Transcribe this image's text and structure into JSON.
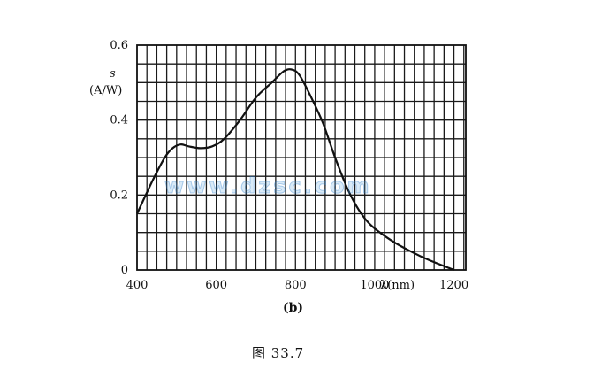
{
  "chart_data": {
    "type": "line",
    "title": "",
    "xlabel": "λ(nm)",
    "ylabel_symbol": "s",
    "ylabel_unit": "(A/W)",
    "xlim": [
      400,
      1230
    ],
    "ylim": [
      0,
      0.6
    ],
    "grid": true,
    "x_ticks": [
      {
        "value": 400,
        "label": "400"
      },
      {
        "value": 600,
        "label": "600"
      },
      {
        "value": 800,
        "label": "800"
      },
      {
        "value": 1000,
        "label": "1000"
      },
      {
        "value": 1200,
        "label": "1200"
      }
    ],
    "y_ticks": [
      {
        "value": 0,
        "label": "0"
      },
      {
        "value": 0.2,
        "label": "0.2"
      },
      {
        "value": 0.4,
        "label": "0.4"
      },
      {
        "value": 0.6,
        "label": "0.6"
      }
    ],
    "series": [
      {
        "color": "#111111",
        "points": [
          [
            400,
            0.15
          ],
          [
            440,
            0.24
          ],
          [
            470,
            0.3
          ],
          [
            490,
            0.325
          ],
          [
            510,
            0.335
          ],
          [
            530,
            0.33
          ],
          [
            560,
            0.325
          ],
          [
            590,
            0.33
          ],
          [
            620,
            0.35
          ],
          [
            660,
            0.4
          ],
          [
            700,
            0.46
          ],
          [
            740,
            0.5
          ],
          [
            770,
            0.53
          ],
          [
            790,
            0.535
          ],
          [
            810,
            0.52
          ],
          [
            840,
            0.46
          ],
          [
            870,
            0.39
          ],
          [
            900,
            0.3
          ],
          [
            930,
            0.22
          ],
          [
            960,
            0.16
          ],
          [
            990,
            0.12
          ],
          [
            1040,
            0.08
          ],
          [
            1090,
            0.05
          ],
          [
            1140,
            0.025
          ],
          [
            1200,
            0.0
          ]
        ]
      }
    ]
  },
  "watermark": "www.dzsc.com",
  "subfigure_label": "(b)",
  "caption": "图 33.7"
}
